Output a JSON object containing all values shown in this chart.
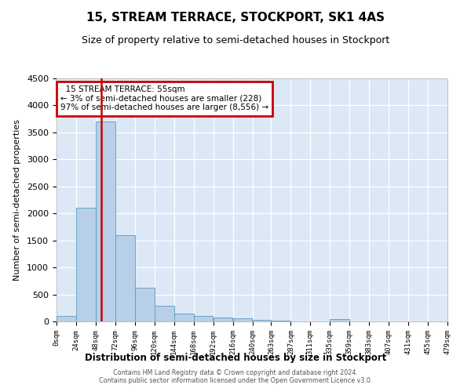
{
  "title": "15, STREAM TERRACE, STOCKPORT, SK1 4AS",
  "subtitle": "Size of property relative to semi-detached houses in Stockport",
  "xlabel": "Distribution of semi-detached houses by size in Stockport",
  "ylabel": "Number of semi-detached properties",
  "annotation_title": "15 STREAM TERRACE: 55sqm",
  "annotation_line1": "← 3% of semi-detached houses are smaller (228)",
  "annotation_line2": "97% of semi-detached houses are larger (8,556) →",
  "property_size_sqm": 55,
  "bin_edges": [
    0,
    24,
    48,
    72,
    96,
    120,
    144,
    168,
    192,
    216,
    240,
    263,
    287,
    311,
    335,
    359,
    383,
    407,
    431,
    455,
    479
  ],
  "bar_heights": [
    100,
    2100,
    3700,
    1600,
    630,
    290,
    145,
    105,
    70,
    55,
    30,
    10,
    5,
    5,
    42,
    5,
    0,
    0,
    0,
    0
  ],
  "bar_color": "#b8cfe8",
  "bar_edge_color": "#5a9abf",
  "marker_line_color": "#cc0000",
  "annotation_box_edgecolor": "#cc0000",
  "background_color": "#dce8f5",
  "grid_color": "#ffffff",
  "ylim": [
    0,
    4500
  ],
  "yticks": [
    0,
    500,
    1000,
    1500,
    2000,
    2500,
    3000,
    3500,
    4000,
    4500
  ],
  "footer_line1": "Contains HM Land Registry data © Crown copyright and database right 2024.",
  "footer_line2": "Contains public sector information licensed under the Open Government Licence v3.0."
}
